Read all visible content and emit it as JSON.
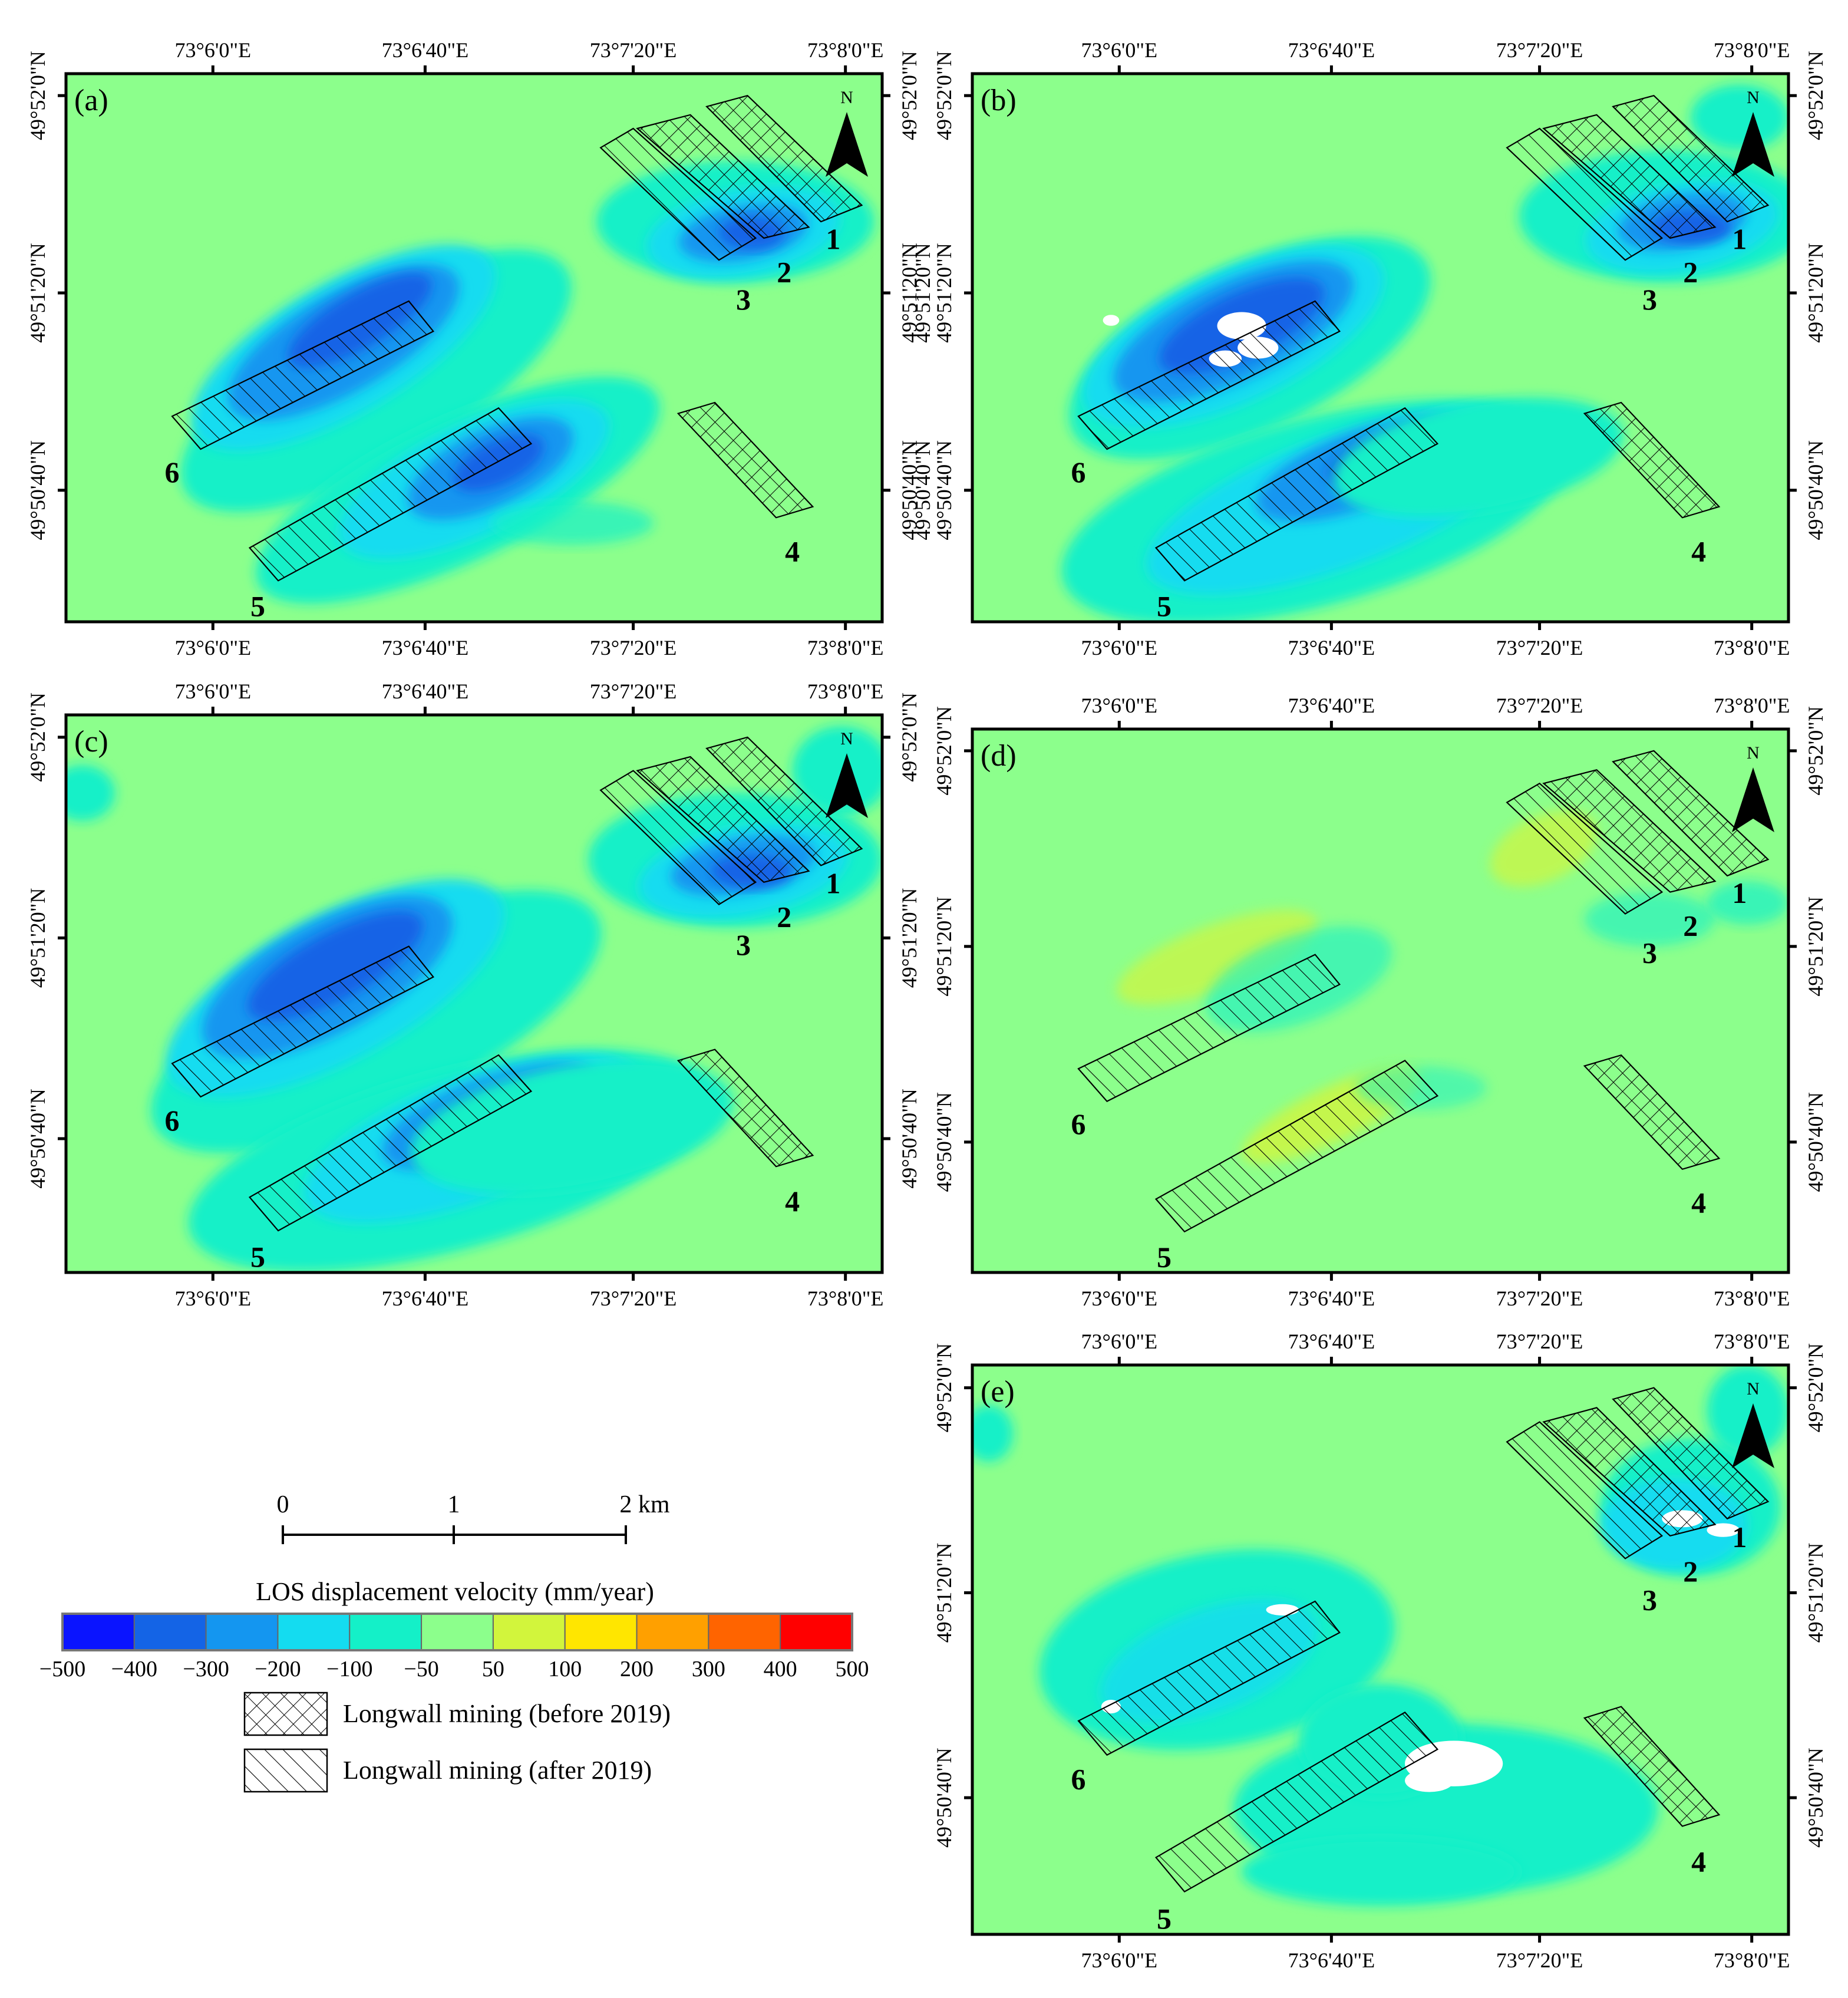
{
  "figure": {
    "lon_ticks": [
      "73°6'0\"E",
      "73°6'40\"E",
      "73°7'20\"E",
      "73°8'0\"E"
    ],
    "lat_ticks": [
      "49°52'0\"N",
      "49°51'20\"N",
      "49°50'40\"N"
    ],
    "lat_ticks_extra": [
      "49°51'20\"N",
      "49°50'40\"N"
    ],
    "north_label": "N",
    "panels": [
      {
        "id": "a",
        "label": "(a)"
      },
      {
        "id": "b",
        "label": "(b)"
      },
      {
        "id": "c",
        "label": "(c)"
      },
      {
        "id": "d",
        "label": "(d)"
      },
      {
        "id": "e",
        "label": "(e)"
      }
    ],
    "panel_numbers": [
      "1",
      "2",
      "3",
      "4",
      "5",
      "6"
    ]
  },
  "scale_bar": {
    "ticks": [
      "0",
      "1",
      "2 km"
    ]
  },
  "legend": {
    "title": "LOS displacement velocity (mm/year)",
    "colors": [
      "#0a14ff",
      "#1464e6",
      "#1496f0",
      "#14dcf0",
      "#14f0c8",
      "#8cff8c",
      "#d2f53c",
      "#ffe600",
      "#ffa000",
      "#ff6400",
      "#ff0000"
    ],
    "breaks": [
      "−500",
      "−400",
      "−300",
      "−200",
      "−100",
      "−50",
      "50",
      "100",
      "200",
      "300",
      "400",
      "500"
    ],
    "items": [
      {
        "pattern": "crosshatch",
        "label": "Longwall mining (before 2019)"
      },
      {
        "pattern": "hatch",
        "label": "Longwall mining (after 2019)"
      }
    ]
  }
}
